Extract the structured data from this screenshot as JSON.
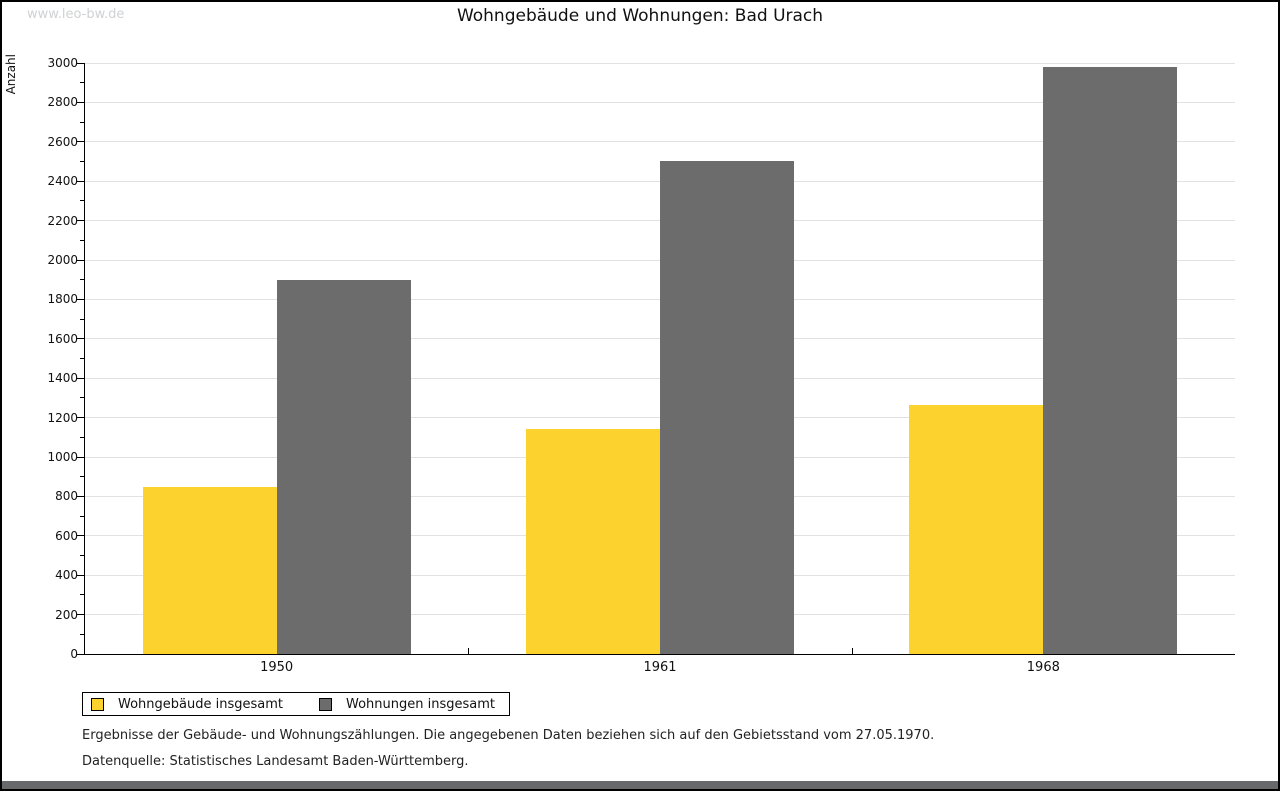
{
  "page": {
    "watermark": "www.leo-bw.de",
    "title": "Wohngebäude und Wohnungen: Bad Urach"
  },
  "chart_data": {
    "type": "bar",
    "title": "Wohngebäude und Wohnungen: Bad Urach",
    "xlabel": "",
    "ylabel": "Anzahl",
    "categories": [
      "1950",
      "1961",
      "1968"
    ],
    "series": [
      {
        "name": "Wohngebäude insgesamt",
        "color": "#fcd32e",
        "values": [
          850,
          1140,
          1265
        ]
      },
      {
        "name": "Wohnungen insgesamt",
        "color": "#6c6c6c",
        "values": [
          1900,
          2505,
          2980
        ]
      }
    ],
    "ylim": [
      0,
      3000
    ],
    "ytick_major": 200,
    "ytick_minor": 100,
    "grid": "horizontal",
    "gridline_color": "#e2e2e2",
    "legend_position": "bottom-left"
  },
  "footer": {
    "line1": "Ergebnisse der Gebäude- und Wohnungszählungen. Die angegebenen Daten beziehen sich auf den Gebietsstand vom 27.05.1970.",
    "line2": "Datenquelle: Statistisches Landesamt Baden-Württemberg."
  },
  "colors": {
    "bar_yellow": "#fcd32e",
    "bar_gray": "#6c6c6c",
    "bottom_strip": "#67696b",
    "watermark": "#cfd2d4"
  }
}
